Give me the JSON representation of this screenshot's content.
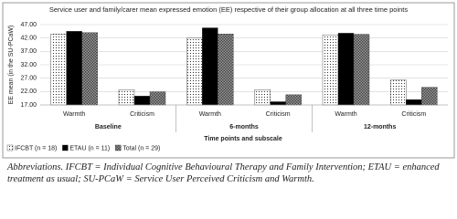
{
  "chart_data": {
    "type": "bar",
    "title": "Service user and family/carer mean expressed emotion (EE) respective of their group allocation at all three time points",
    "y_label": "EE mean (in the SU-PCaW)",
    "x_label": "Time points and subscale",
    "categories": [
      "Warmth",
      "Criticism",
      "Warmth",
      "Criticism",
      "Warmth",
      "Criticism"
    ],
    "groups": [
      "Baseline",
      "6-months",
      "12-months"
    ],
    "series": [
      {
        "name": "IFCBT (n = 18)",
        "color": "#ffffff",
        "values": [
          43.5,
          22.7,
          42.0,
          22.7,
          43.2,
          26.3
        ]
      },
      {
        "name": "ETAU (n = 11)",
        "color": "#000000",
        "values": [
          44.5,
          20.3,
          45.8,
          18.2,
          43.8,
          19.0
        ]
      },
      {
        "name": "Total (n = 29)",
        "color": "#9a9a9a",
        "values": [
          44.0,
          21.9,
          43.5,
          20.8,
          43.4,
          23.6
        ]
      }
    ],
    "ylim": [
      17,
      47
    ],
    "yticks": [
      {
        "value": 17,
        "label": "17.00"
      },
      {
        "value": 22,
        "label": "22.00"
      },
      {
        "value": 27,
        "label": "27.00"
      },
      {
        "value": 32,
        "label": "32.00"
      },
      {
        "value": 37,
        "label": "37.00"
      },
      {
        "value": 42,
        "label": "42.00"
      },
      {
        "value": 47,
        "label": "47.00"
      }
    ],
    "grid": true,
    "legend": "bottom-left"
  },
  "caption": "Abbreviations. IFCBT = Individual Cognitive Behavioural Therapy and Family Intervention; ETAU = enhanced treatment as usual; SU-PCaW = Service User Perceived Criticism and Warmth."
}
